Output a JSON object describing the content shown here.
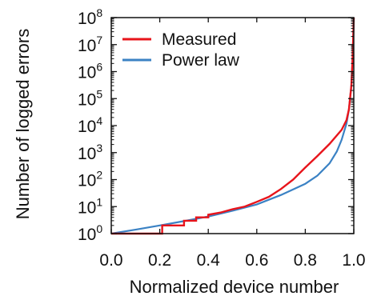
{
  "chart_data": {
    "type": "line",
    "xlabel": "Normalized device number",
    "ylabel": "Number of logged errors",
    "xlim": [
      0.0,
      1.0
    ],
    "ylim": [
      1,
      100000000
    ],
    "yscale": "log",
    "x_ticks": [
      {
        "value": 0.0,
        "label": "0.0"
      },
      {
        "value": 0.2,
        "label": "0.2"
      },
      {
        "value": 0.4,
        "label": "0.4"
      },
      {
        "value": 0.6,
        "label": "0.6"
      },
      {
        "value": 0.8,
        "label": "0.8"
      },
      {
        "value": 1.0,
        "label": "1.0"
      }
    ],
    "y_ticks": [
      {
        "value": 1,
        "base": "10",
        "exp": "0"
      },
      {
        "value": 10,
        "base": "10",
        "exp": "1"
      },
      {
        "value": 100,
        "base": "10",
        "exp": "2"
      },
      {
        "value": 1000,
        "base": "10",
        "exp": "3"
      },
      {
        "value": 10000,
        "base": "10",
        "exp": "4"
      },
      {
        "value": 100000,
        "base": "10",
        "exp": "5"
      },
      {
        "value": 1000000,
        "base": "10",
        "exp": "6"
      },
      {
        "value": 10000000,
        "base": "10",
        "exp": "7"
      },
      {
        "value": 100000000,
        "base": "10",
        "exp": "8"
      }
    ],
    "legend_position": "top-left",
    "grid": false,
    "series": [
      {
        "name": "Measured",
        "color": "#e8141b",
        "step": true,
        "points": [
          [
            0.0,
            1
          ],
          [
            0.21,
            1
          ],
          [
            0.21,
            2
          ],
          [
            0.3,
            2
          ],
          [
            0.3,
            3
          ],
          [
            0.35,
            3
          ],
          [
            0.35,
            4
          ],
          [
            0.4,
            4
          ],
          [
            0.4,
            5
          ],
          [
            0.45,
            6
          ],
          [
            0.5,
            8
          ],
          [
            0.55,
            10
          ],
          [
            0.6,
            15
          ],
          [
            0.65,
            23
          ],
          [
            0.7,
            45
          ],
          [
            0.75,
            100
          ],
          [
            0.8,
            280
          ],
          [
            0.85,
            750
          ],
          [
            0.9,
            2100
          ],
          [
            0.95,
            7000
          ],
          [
            0.97,
            16000
          ],
          [
            0.98,
            40000
          ],
          [
            0.99,
            300000
          ],
          [
            0.995,
            3000000
          ],
          [
            1.0,
            100000000
          ]
        ]
      },
      {
        "name": "Power law",
        "color": "#3b82c4",
        "step": false,
        "points": [
          [
            0.0,
            1
          ],
          [
            0.1,
            1.4
          ],
          [
            0.2,
            2
          ],
          [
            0.3,
            2.9
          ],
          [
            0.4,
            4.3
          ],
          [
            0.5,
            7
          ],
          [
            0.6,
            12
          ],
          [
            0.7,
            27
          ],
          [
            0.8,
            70
          ],
          [
            0.85,
            140
          ],
          [
            0.9,
            400
          ],
          [
            0.93,
            1100
          ],
          [
            0.95,
            3000
          ],
          [
            0.97,
            12000
          ],
          [
            0.98,
            40000
          ],
          [
            0.99,
            300000
          ],
          [
            0.995,
            3000000
          ],
          [
            1.0,
            100000000
          ]
        ]
      }
    ]
  }
}
